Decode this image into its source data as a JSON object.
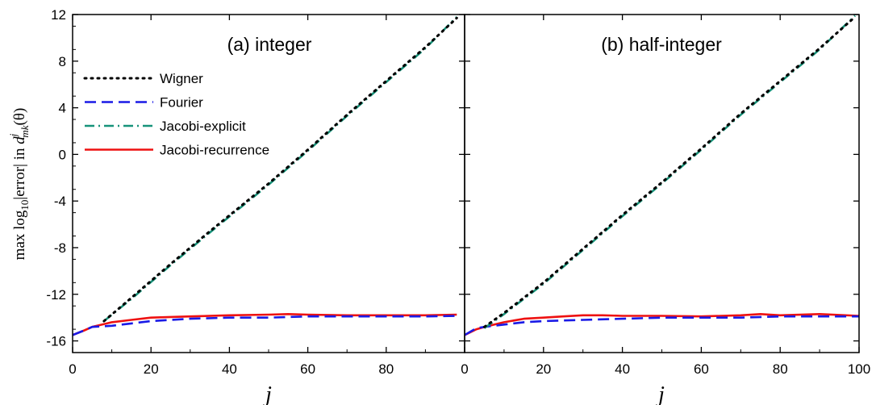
{
  "chart_data": {
    "type": "line",
    "shared_y_axis": {
      "label_parts": [
        "max log",
        "10",
        "|error| in ",
        "d",
        "j",
        "mk",
        "(θ)"
      ],
      "ylim": [
        -17,
        12
      ],
      "ticks": [
        -16,
        -12,
        -8,
        -4,
        0,
        4,
        8,
        12
      ],
      "tick_labels": [
        "-16",
        "-12",
        "-8",
        "-4",
        "0",
        "4",
        "8",
        "12"
      ]
    },
    "legend": {
      "placement": "upper-left of panel (a)",
      "entries": [
        {
          "series": "Wigner",
          "label": "Wigner"
        },
        {
          "series": "Fourier",
          "label": "Fourier"
        },
        {
          "series": "Jacobi-explicit",
          "label": "Jacobi-explicit"
        },
        {
          "series": "Jacobi-recurrence",
          "label": "Jacobi-recurrence"
        }
      ]
    },
    "series_styles": {
      "Wigner": {
        "color": "#000000",
        "dash": "dot"
      },
      "Fourier": {
        "color": "#1a1ae6",
        "dash": "dash"
      },
      "Jacobi-explicit": {
        "color": "#17937a",
        "dash": "dashdot"
      },
      "Jacobi-recurrence": {
        "color": "#ee1111",
        "dash": "solid"
      }
    },
    "panels": [
      {
        "title": "(a) integer",
        "xlabel": "j",
        "xlim": [
          0,
          100
        ],
        "x_ticks": [
          0,
          20,
          40,
          60,
          80
        ],
        "x_tick_labels": [
          "0",
          "20",
          "40",
          "60",
          "80"
        ],
        "series": [
          {
            "name": "Wigner",
            "points": [
              [
                8,
                -14.3
              ],
              [
                15,
                -12.3
              ],
              [
                25,
                -9.4
              ],
              [
                35,
                -6.6
              ],
              [
                50,
                -2.5
              ],
              [
                60,
                0.4
              ],
              [
                70,
                3.4
              ],
              [
                80,
                6.3
              ],
              [
                90,
                9.2
              ],
              [
                98,
                11.7
              ]
            ]
          },
          {
            "name": "Jacobi-explicit",
            "points": [
              [
                8,
                -14.3
              ],
              [
                15,
                -12.4
              ],
              [
                25,
                -9.5
              ],
              [
                35,
                -6.7
              ],
              [
                50,
                -2.6
              ],
              [
                60,
                0.3
              ],
              [
                70,
                3.3
              ],
              [
                80,
                6.2
              ],
              [
                90,
                9.1
              ],
              [
                98,
                11.8
              ]
            ]
          },
          {
            "name": "Fourier",
            "points": [
              [
                0,
                -15.5
              ],
              [
                3,
                -15.1
              ],
              [
                5,
                -14.8
              ],
              [
                10,
                -14.7
              ],
              [
                15,
                -14.5
              ],
              [
                20,
                -14.3
              ],
              [
                30,
                -14.1
              ],
              [
                40,
                -14.0
              ],
              [
                50,
                -14.0
              ],
              [
                60,
                -13.9
              ],
              [
                70,
                -13.9
              ],
              [
                80,
                -13.9
              ],
              [
                90,
                -13.9
              ],
              [
                98,
                -13.85
              ]
            ]
          },
          {
            "name": "Jacobi-recurrence",
            "points": [
              [
                0,
                -15.5
              ],
              [
                3,
                -15.1
              ],
              [
                5,
                -14.8
              ],
              [
                10,
                -14.4
              ],
              [
                15,
                -14.2
              ],
              [
                20,
                -14.0
              ],
              [
                30,
                -13.9
              ],
              [
                40,
                -13.8
              ],
              [
                50,
                -13.75
              ],
              [
                55,
                -13.7
              ],
              [
                60,
                -13.75
              ],
              [
                70,
                -13.8
              ],
              [
                80,
                -13.8
              ],
              [
                90,
                -13.8
              ],
              [
                98,
                -13.75
              ]
            ]
          }
        ]
      },
      {
        "title": "(b) half-integer",
        "xlabel": "j",
        "xlim": [
          0,
          100
        ],
        "x_ticks": [
          0,
          20,
          40,
          60,
          80,
          100
        ],
        "x_tick_labels": [
          "0",
          "20",
          "40",
          "60",
          "80",
          "100"
        ],
        "series": [
          {
            "name": "Wigner",
            "points": [
              [
                5,
                -14.8
              ],
              [
                10,
                -13.6
              ],
              [
                20,
                -11.0
              ],
              [
                30,
                -8.1
              ],
              [
                40,
                -5.2
              ],
              [
                50,
                -2.4
              ],
              [
                60,
                0.5
              ],
              [
                70,
                3.5
              ],
              [
                80,
                6.3
              ],
              [
                90,
                9.1
              ],
              [
                99,
                11.8
              ]
            ]
          },
          {
            "name": "Jacobi-explicit",
            "points": [
              [
                5,
                -14.9
              ],
              [
                10,
                -13.7
              ],
              [
                20,
                -11.1
              ],
              [
                30,
                -8.2
              ],
              [
                40,
                -5.3
              ],
              [
                50,
                -2.5
              ],
              [
                60,
                0.4
              ],
              [
                70,
                3.4
              ],
              [
                80,
                6.2
              ],
              [
                90,
                9.0
              ],
              [
                99,
                11.9
              ]
            ]
          },
          {
            "name": "Fourier",
            "points": [
              [
                0,
                -15.5
              ],
              [
                3,
                -14.9
              ],
              [
                5,
                -14.8
              ],
              [
                10,
                -14.6
              ],
              [
                15,
                -14.4
              ],
              [
                20,
                -14.3
              ],
              [
                30,
                -14.2
              ],
              [
                40,
                -14.1
              ],
              [
                50,
                -14.0
              ],
              [
                60,
                -14.0
              ],
              [
                70,
                -14.0
              ],
              [
                80,
                -13.9
              ],
              [
                90,
                -13.9
              ],
              [
                100,
                -13.9
              ]
            ]
          },
          {
            "name": "Jacobi-recurrence",
            "points": [
              [
                0,
                -15.5
              ],
              [
                3,
                -15.0
              ],
              [
                5,
                -14.8
              ],
              [
                10,
                -14.4
              ],
              [
                15,
                -14.1
              ],
              [
                20,
                -14.0
              ],
              [
                25,
                -13.9
              ],
              [
                30,
                -13.8
              ],
              [
                35,
                -13.8
              ],
              [
                40,
                -13.85
              ],
              [
                50,
                -13.85
              ],
              [
                60,
                -13.9
              ],
              [
                70,
                -13.8
              ],
              [
                75,
                -13.7
              ],
              [
                80,
                -13.8
              ],
              [
                90,
                -13.7
              ],
              [
                100,
                -13.85
              ]
            ]
          }
        ]
      }
    ]
  }
}
